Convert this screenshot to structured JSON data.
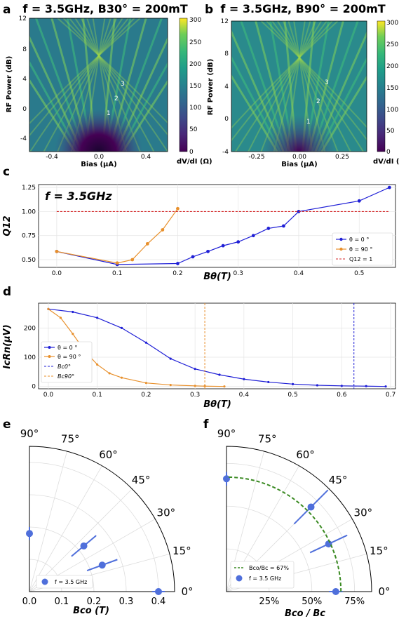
{
  "panels": {
    "a": {
      "label": "a",
      "title": "f = 3.5GHz, B30° = 200mT",
      "xlabel": "Bias (μA)",
      "ylabel": "RF Power (dB)",
      "cbar_label": "dV/dI (Ω)",
      "x_ticks": [
        "-0.4",
        "0.0",
        "0.4"
      ],
      "y_ticks": [
        "12",
        "8",
        "4",
        "0",
        "-4"
      ],
      "cbar_ticks": [
        "300",
        "250",
        "200",
        "150",
        "100",
        "50",
        "0"
      ],
      "annotations": [
        "1",
        "2",
        "3"
      ]
    },
    "b": {
      "label": "b",
      "title": "f = 3.5GHz, B90° = 200mT",
      "xlabel": "Bias (μA)",
      "ylabel": "RF Power (dB)",
      "cbar_label": "dV/dI (Ω)",
      "x_ticks": [
        "-0.25",
        "0.00",
        "0.25"
      ],
      "y_ticks": [
        "12",
        "8",
        "4",
        "0",
        "-4"
      ],
      "cbar_ticks": [
        "300",
        "250",
        "200",
        "150",
        "100",
        "50",
        "0"
      ],
      "annotations": [
        "1",
        "2",
        "3"
      ]
    },
    "c": {
      "label": "c",
      "inset_text": "f = 3.5GHz",
      "xlabel": "Bθ(T)",
      "ylabel": "Q12",
      "x_ticks": [
        "0.0",
        "0.1",
        "0.2",
        "0.3",
        "0.4",
        "0.5"
      ],
      "y_ticks": [
        "1.25",
        "1.00",
        "0.75",
        "0.50"
      ],
      "legend": [
        "θ = 0 °",
        "θ = 90 °",
        "Q12 = 1"
      ]
    },
    "d": {
      "label": "d",
      "xlabel": "Bθ(T)",
      "ylabel": "IcRn(μV)",
      "x_ticks": [
        "0.0",
        "0.1",
        "0.2",
        "0.3",
        "0.4",
        "0.5",
        "0.6",
        "0.7"
      ],
      "y_ticks": [
        "200",
        "100",
        "0"
      ],
      "legend": [
        "θ = 0 °",
        "θ = 90 °",
        "Bc0°",
        "Bc90°"
      ]
    },
    "e": {
      "label": "e",
      "angle_ticks": [
        "90°",
        "75°",
        "60°",
        "45°",
        "30°",
        "15°",
        "0°"
      ],
      "r_ticks": [
        "0.0",
        "0.1",
        "0.2",
        "0.3",
        "0.4"
      ],
      "rlabel": "Bco (T)",
      "legend": [
        "f = 3.5 GHz"
      ]
    },
    "f": {
      "label": "f",
      "angle_ticks": [
        "90°",
        "75°",
        "60°",
        "45°",
        "30°",
        "15°",
        "0°"
      ],
      "r_ticks": [
        "25%",
        "50%",
        "75%"
      ],
      "rlabel": "Bco / Bc",
      "legend": [
        "Bco/Bc = 67%",
        "f = 3.5 GHz"
      ]
    }
  },
  "chart_data": [
    {
      "type": "heatmap",
      "panel": "a",
      "title": "f = 3.5GHz, B30° = 200mT",
      "xlabel": "Bias (μA)",
      "ylabel": "RF Power (dB)",
      "xlim": [
        -0.6,
        0.6
      ],
      "ylim": [
        -7,
        12
      ],
      "clim": [
        0,
        300
      ],
      "colormap": "viridis",
      "annotations": [
        {
          "text": "1",
          "x": 0.05,
          "y": 1.0
        },
        {
          "text": "2",
          "x": 0.12,
          "y": 2.5
        },
        {
          "text": "3",
          "x": 0.17,
          "y": 4.0
        }
      ]
    },
    {
      "type": "heatmap",
      "panel": "b",
      "title": "f = 3.5GHz, B90° = 200mT",
      "xlabel": "Bias (μA)",
      "ylabel": "RF Power (dB)",
      "xlim": [
        -0.4,
        0.4
      ],
      "ylim": [
        -4,
        12
      ],
      "clim": [
        0,
        300
      ],
      "colormap": "viridis",
      "annotations": [
        {
          "text": "1",
          "x": 0.03,
          "y": 0.0
        },
        {
          "text": "2",
          "x": 0.09,
          "y": 2.0
        },
        {
          "text": "3",
          "x": 0.14,
          "y": 4.0
        }
      ]
    },
    {
      "type": "line",
      "panel": "c",
      "xlabel": "Bθ(T)",
      "ylabel": "Q12",
      "xlim": [
        -0.03,
        0.56
      ],
      "ylim": [
        0.42,
        1.28
      ],
      "legend_position": "lower-right",
      "series": [
        {
          "name": "θ = 0 °",
          "color": "#1f1fd6",
          "x": [
            0.0,
            0.1,
            0.2,
            0.225,
            0.25,
            0.275,
            0.3,
            0.325,
            0.35,
            0.375,
            0.4,
            0.5,
            0.55
          ],
          "y": [
            0.585,
            0.45,
            0.46,
            0.53,
            0.585,
            0.645,
            0.685,
            0.75,
            0.825,
            0.85,
            1.0,
            1.11,
            1.25
          ]
        },
        {
          "name": "θ = 90 °",
          "color": "#e8902c",
          "x": [
            0.0,
            0.1,
            0.125,
            0.15,
            0.175,
            0.2
          ],
          "y": [
            0.585,
            0.465,
            0.5,
            0.665,
            0.81,
            1.03
          ]
        },
        {
          "name": "Q12 = 1",
          "color": "#d62728",
          "dashed": true,
          "x": [
            0.0,
            0.55
          ],
          "y": [
            1.0,
            1.0
          ]
        }
      ]
    },
    {
      "type": "line",
      "panel": "d",
      "xlabel": "Bθ(T)",
      "ylabel": "IcRn(μV)",
      "xlim": [
        -0.02,
        0.71
      ],
      "ylim": [
        -8,
        285
      ],
      "legend_position": "upper-left",
      "series": [
        {
          "name": "θ = 0 °",
          "color": "#1f1fd6",
          "x": [
            0.0,
            0.05,
            0.1,
            0.15,
            0.2,
            0.25,
            0.3,
            0.35,
            0.4,
            0.45,
            0.5,
            0.55,
            0.6,
            0.65,
            0.69
          ],
          "y": [
            265,
            255,
            235,
            200,
            150,
            95,
            60,
            40,
            25,
            15,
            8,
            4,
            2,
            1,
            0
          ]
        },
        {
          "name": "θ = 90 °",
          "color": "#e8902c",
          "x": [
            0.0,
            0.025,
            0.05,
            0.075,
            0.1,
            0.125,
            0.15,
            0.2,
            0.25,
            0.3,
            0.32,
            0.36
          ],
          "y": [
            265,
            235,
            180,
            120,
            75,
            45,
            30,
            12,
            5,
            2,
            1,
            0
          ]
        },
        {
          "name": "Bc0°",
          "color": "#1f1fd6",
          "dashed": true,
          "vertical_x": 0.625
        },
        {
          "name": "Bc90°",
          "color": "#e8902c",
          "dashed": true,
          "vertical_x": 0.32
        }
      ]
    },
    {
      "type": "scatter",
      "panel": "e",
      "projection": "polar-quadrant",
      "rlabel": "Bco (T)",
      "rlim": [
        0,
        0.45
      ],
      "series": [
        {
          "name": "f = 3.5 GHz",
          "color": "#4f6fdb",
          "theta_deg": [
            0,
            20,
            40,
            90
          ],
          "r": [
            0.4,
            0.24,
            0.22,
            0.18
          ],
          "r_err": [
            0.02,
            0.05,
            0.05,
            0.02
          ]
        }
      ]
    },
    {
      "type": "scatter",
      "panel": "f",
      "projection": "polar-quadrant",
      "rlabel": "Bco / Bc",
      "rlim": [
        0,
        0.85
      ],
      "series": [
        {
          "name": "f = 3.5 GHz",
          "color": "#4f6fdb",
          "theta_deg": [
            0,
            25,
            45,
            90
          ],
          "r": [
            0.64,
            0.66,
            0.7,
            0.66
          ],
          "r_err": [
            0.04,
            0.12,
            0.14,
            0.04
          ]
        },
        {
          "name": "Bco/Bc = 67%",
          "color": "#3a8a22",
          "dashed": true,
          "constant_r": 0.67
        }
      ]
    }
  ]
}
